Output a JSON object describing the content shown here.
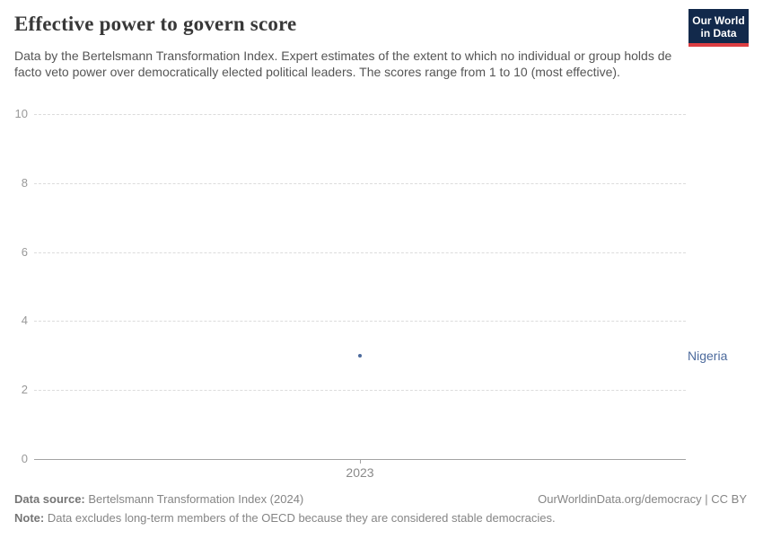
{
  "header": {
    "title": "Effective power to govern score",
    "subtitle": "Data by the Bertelsmann Transformation Index. Expert estimates of the extent to which no individual or group holds de facto veto power over democratically elected political leaders. The scores range from 1 to 10 (most effective)."
  },
  "logo": {
    "line1": "Our World",
    "line2": "in Data",
    "bg_color": "#12294b",
    "bar_color": "#dc3e42"
  },
  "chart_data": {
    "type": "scatter",
    "series": [
      {
        "name": "Nigeria",
        "x": [
          2023
        ],
        "values": [
          3
        ],
        "color": "#4c6a9c"
      }
    ],
    "x": [
      2023
    ],
    "xticks": [
      "2023"
    ],
    "yticks": [
      0,
      2,
      4,
      6,
      8,
      10
    ],
    "ylim": [
      0,
      10
    ],
    "title": "Effective power to govern score",
    "xlabel": "",
    "ylabel": "",
    "grid": "horizontal-dashed",
    "legend_position": "right-of-plot-entity-label",
    "colors": {
      "gridline": "#dcdcdc",
      "axis": "#a3a3a3",
      "tick_text": "#999999"
    }
  },
  "footer": {
    "datasource_label": "Data source:",
    "datasource_value": " Bertelsmann Transformation Index (2024)",
    "link": "OurWorldinData.org/democracy | CC BY",
    "note_label": "Note:",
    "note_value": " Data excludes long-term members of the OECD because they are considered stable democracies."
  }
}
